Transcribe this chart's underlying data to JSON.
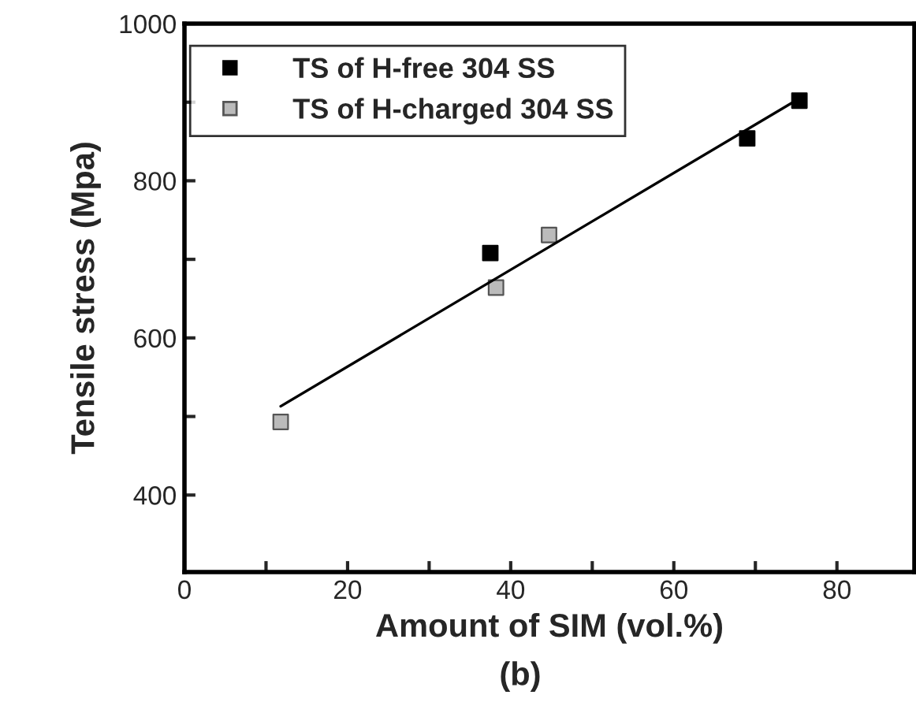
{
  "chart_data": {
    "type": "scatter",
    "xlabel": "Amount of SIM (vol.%)",
    "ylabel": "Tensile stress (Mpa)",
    "annotations": [
      "(b)"
    ],
    "series": [
      {
        "name": "TS of H-free 304 SS",
        "color": "#000000",
        "marker": "square",
        "x": [
          37.5,
          69.0,
          75.4
        ],
        "values": [
          708,
          854,
          902
        ]
      },
      {
        "name": "TS of H-charged 304 SS",
        "color": "#555555",
        "marker": "square",
        "x": [
          11.8,
          38.2,
          44.7
        ],
        "values": [
          493,
          664,
          731
        ]
      },
      {
        "type": "line",
        "color": "#000000",
        "marker": "none",
        "x": [
          11.8,
          75.1
        ],
        "values": [
          513,
          903
        ]
      }
    ],
    "xlim": [
      0,
      89.5
    ],
    "ylim": [
      302,
      1000
    ],
    "xticks": [
      0,
      {
        "value": 10,
        "label": null
      },
      20,
      {
        "value": 30,
        "label": null
      },
      40,
      {
        "value": 50,
        "label": null
      },
      60,
      {
        "value": 70,
        "label": null
      },
      80
    ],
    "yticks": [
      400,
      {
        "value": 500,
        "label": null
      },
      600,
      {
        "value": 700,
        "label": null
      },
      800,
      {
        "value": 900,
        "label": null
      },
      1000
    ],
    "legend": "top left",
    "grid": false
  }
}
